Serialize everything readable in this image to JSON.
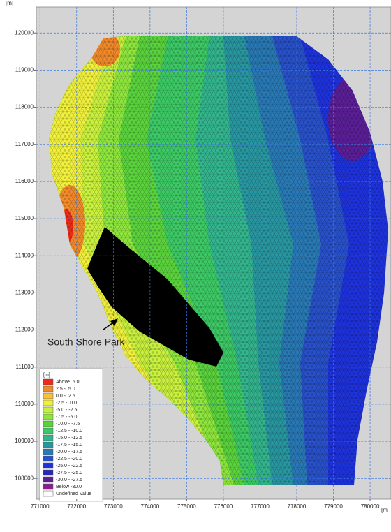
{
  "map": {
    "y_unit": "[m]",
    "x_unit": "[m",
    "xlim": [
      770900,
      780570
    ],
    "ylim": [
      107440,
      120700
    ],
    "xticks": [
      771000,
      772000,
      773000,
      774000,
      775000,
      776000,
      777000,
      778000,
      779000,
      780000
    ],
    "yticks": [
      108000,
      109000,
      110000,
      111000,
      112000,
      113000,
      114000,
      115000,
      116000,
      117000,
      118000,
      119000,
      120000
    ],
    "grid": true,
    "annotation": "South Shore Park",
    "legend": {
      "title": "[m]",
      "items": [
        {
          "label": "Above  5.0",
          "color": "#ee2a1c"
        },
        {
          "label": "2.5 -  5.0",
          "color": "#f28a2a"
        },
        {
          "label": "0.0 -  2.5",
          "color": "#f5c23c"
        },
        {
          "label": "-2.5 -  0.0",
          "color": "#f0f03c"
        },
        {
          "label": "-5.0 - -2.5",
          "color": "#c8f03c"
        },
        {
          "label": "-7.5 - -5.0",
          "color": "#8ee63c"
        },
        {
          "label": "-10.0 - -7.5",
          "color": "#5ad23c"
        },
        {
          "label": "-12.5 - -10.0",
          "color": "#3cc864"
        },
        {
          "label": "-15.0 - -12.5",
          "color": "#32b48c"
        },
        {
          "label": "-17.5 - -15.0",
          "color": "#2896a0"
        },
        {
          "label": "-20.0 - -17.5",
          "color": "#2878b4"
        },
        {
          "label": "-22.5 - -20.0",
          "color": "#2850c8"
        },
        {
          "label": "-25.0 - -22.5",
          "color": "#1e32dc"
        },
        {
          "label": "-27.5 - -25.0",
          "color": "#2828b4"
        },
        {
          "label": "-30.0 - -27.5",
          "color": "#5a1e96"
        },
        {
          "label": "Below -30.0",
          "color": "#8c1e8c"
        },
        {
          "label": "Undefined Value",
          "color": "#ffffff"
        }
      ]
    }
  }
}
